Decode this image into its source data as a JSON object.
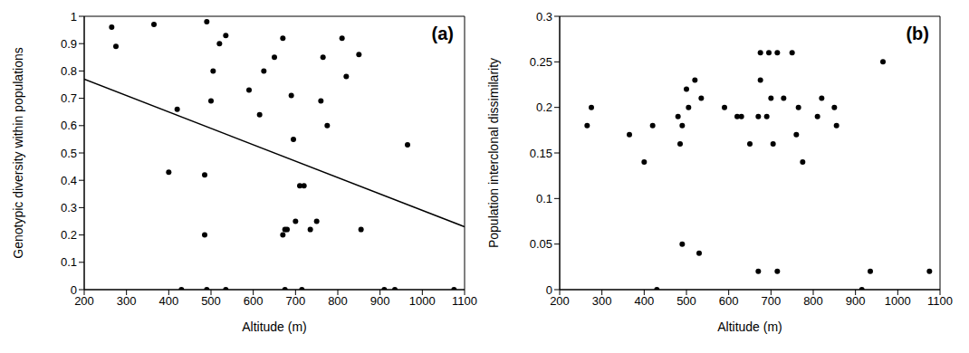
{
  "chart_data": [
    {
      "type": "scatter",
      "annotation": "(a)",
      "x_label": "Altitude (m)",
      "y_label": "Genotypic diversity within populations",
      "color": "#000000",
      "marker": "circle",
      "x": [
        265,
        275,
        365,
        400,
        420,
        430,
        485,
        485,
        490,
        490,
        500,
        505,
        520,
        535,
        535,
        590,
        615,
        625,
        650,
        670,
        670,
        675,
        680,
        675,
        690,
        695,
        700,
        710,
        720,
        715,
        735,
        750,
        760,
        765,
        775,
        810,
        820,
        850,
        855,
        910,
        935,
        965,
        1075
      ],
      "values": [
        0.96,
        0.89,
        0.97,
        0.43,
        0.66,
        0,
        0.42,
        0.2,
        0,
        0.98,
        0.69,
        0.8,
        0.9,
        0.93,
        0,
        0.73,
        0.64,
        0.8,
        0.85,
        0.92,
        0.2,
        0.22,
        0.22,
        0,
        0.71,
        0.55,
        0.25,
        0.38,
        0.38,
        0,
        0.22,
        0.25,
        0.69,
        0.85,
        0.6,
        0.92,
        0.78,
        0.86,
        0.22,
        0,
        0,
        0.53,
        0
      ],
      "xlim": [
        200,
        1100
      ],
      "xticks": [
        200,
        300,
        400,
        500,
        600,
        700,
        800,
        900,
        1000,
        1100
      ],
      "ylim": [
        0,
        1
      ],
      "yticks": [
        0,
        0.1,
        0.2,
        0.3,
        0.4,
        0.5,
        0.6,
        0.7,
        0.8,
        0.9,
        1
      ],
      "trend_line": {
        "type": "line",
        "color": "#000000",
        "x": [
          200,
          1100
        ],
        "values": [
          0.77,
          0.23
        ]
      }
    },
    {
      "type": "scatter",
      "annotation": "(b)",
      "x_label": "Altitude (m)",
      "y_label": "Population interclonal dissimilarity",
      "color": "#000000",
      "marker": "circle",
      "x": [
        265,
        275,
        365,
        400,
        420,
        430,
        480,
        485,
        490,
        490,
        500,
        505,
        520,
        530,
        535,
        590,
        620,
        630,
        650,
        670,
        670,
        675,
        675,
        690,
        695,
        700,
        705,
        715,
        715,
        730,
        750,
        760,
        765,
        775,
        810,
        820,
        850,
        855,
        915,
        935,
        965,
        1075
      ],
      "values": [
        0.18,
        0.2,
        0.17,
        0.14,
        0.18,
        0,
        0.19,
        0.16,
        0.05,
        0.18,
        0.22,
        0.2,
        0.23,
        0.04,
        0.21,
        0.2,
        0.19,
        0.19,
        0.16,
        0.19,
        0.02,
        0.26,
        0.23,
        0.19,
        0.26,
        0.21,
        0.16,
        0.26,
        0.02,
        0.21,
        0.26,
        0.17,
        0.2,
        0.14,
        0.19,
        0.21,
        0.2,
        0.18,
        0,
        0.02,
        0.25,
        0.02
      ],
      "xlim": [
        200,
        1100
      ],
      "xticks": [
        200,
        300,
        400,
        500,
        600,
        700,
        800,
        900,
        1000,
        1100
      ],
      "ylim": [
        0,
        0.3
      ],
      "yticks": [
        0,
        0.05,
        0.1,
        0.15,
        0.2,
        0.25,
        0.3
      ]
    }
  ]
}
